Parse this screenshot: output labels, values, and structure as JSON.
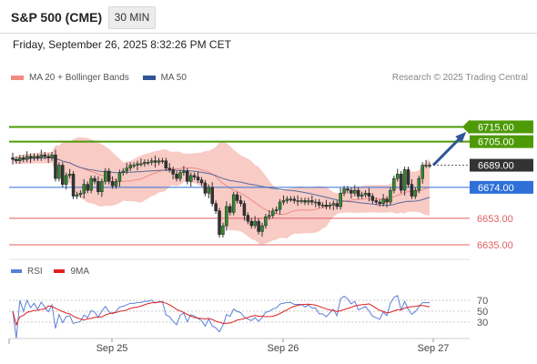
{
  "header": {
    "instrument": "S&P 500 (CME)",
    "timeframe": "30 MIN"
  },
  "timestamp": "Friday, September 26, 2025 8:32:26 PM CET",
  "legend": [
    {
      "label": "MA 20 + Bollinger Bands",
      "color": "#f28b82"
    },
    {
      "label": "MA 50",
      "color": "#2f5597"
    }
  ],
  "credit": "Research © 2025 Trading Central",
  "rsi_legend": [
    {
      "label": "RSI",
      "color": "#5b7fd6"
    },
    {
      "label": "9MA",
      "color": "#e02020"
    }
  ],
  "chart_data": {
    "type": "candlestick",
    "price_axis": {
      "min": 6627,
      "max": 6727,
      "tick_labels": [
        "6715.00",
        "6705.00",
        "6689.00",
        "6674.00",
        "6653.00",
        "6635.00"
      ]
    },
    "levels": [
      {
        "value": 6715,
        "label": "6715.00",
        "kind": "resistance",
        "color": "#4e9a06"
      },
      {
        "value": 6705,
        "label": "6705.00",
        "kind": "resistance",
        "color": "#4e9a06"
      },
      {
        "value": 6689,
        "label": "6689.00",
        "kind": "last",
        "color": "#333333"
      },
      {
        "value": 6674,
        "label": "6674.00",
        "kind": "pivot",
        "color": "#2e6fd8"
      },
      {
        "value": 6653,
        "label": "6653.00",
        "kind": "support",
        "color": "#e06060"
      },
      {
        "value": 6635,
        "label": "6635.00",
        "kind": "support",
        "color": "#e06060"
      }
    ],
    "x_axis_labels": [
      "Sep 25",
      "Sep 26",
      "Sep 27"
    ],
    "closes": [
      6693,
      6692,
      6694,
      6693,
      6695,
      6694,
      6695,
      6694,
      6696,
      6695,
      6694,
      6696,
      6680,
      6689,
      6676,
      6682,
      6683,
      6668,
      6669,
      6670,
      6676,
      6672,
      6680,
      6678,
      6671,
      6678,
      6685,
      6678,
      6675,
      6678,
      6684,
      6685,
      6687,
      6689,
      6689,
      6690,
      6690,
      6691,
      6691,
      6692,
      6691,
      6692,
      6692,
      6687,
      6686,
      6683,
      6680,
      6684,
      6685,
      6678,
      6682,
      6681,
      6679,
      6677,
      6670,
      6674,
      6663,
      6658,
      6642,
      6648,
      6661,
      6657,
      6669,
      6665,
      6663,
      6655,
      6651,
      6648,
      6651,
      6644,
      6648,
      6654,
      6655,
      6658,
      6659,
      6664,
      6665,
      6666,
      6666,
      6665,
      6665,
      6665,
      6664,
      6665,
      6664,
      6664,
      6662,
      6662,
      6661,
      6662,
      6663,
      6661,
      6670,
      6673,
      6672,
      6670,
      6672,
      6668,
      6669,
      6670,
      6668,
      6665,
      6664,
      6663,
      6666,
      6664,
      6672,
      6680,
      6683,
      6672,
      6686,
      6676,
      6668,
      6672,
      6680,
      6689,
      6689,
      6689
    ],
    "rsi": {
      "levels": [
        70,
        50,
        30
      ],
      "tick_labels": [
        "70",
        "50",
        "30"
      ]
    }
  }
}
